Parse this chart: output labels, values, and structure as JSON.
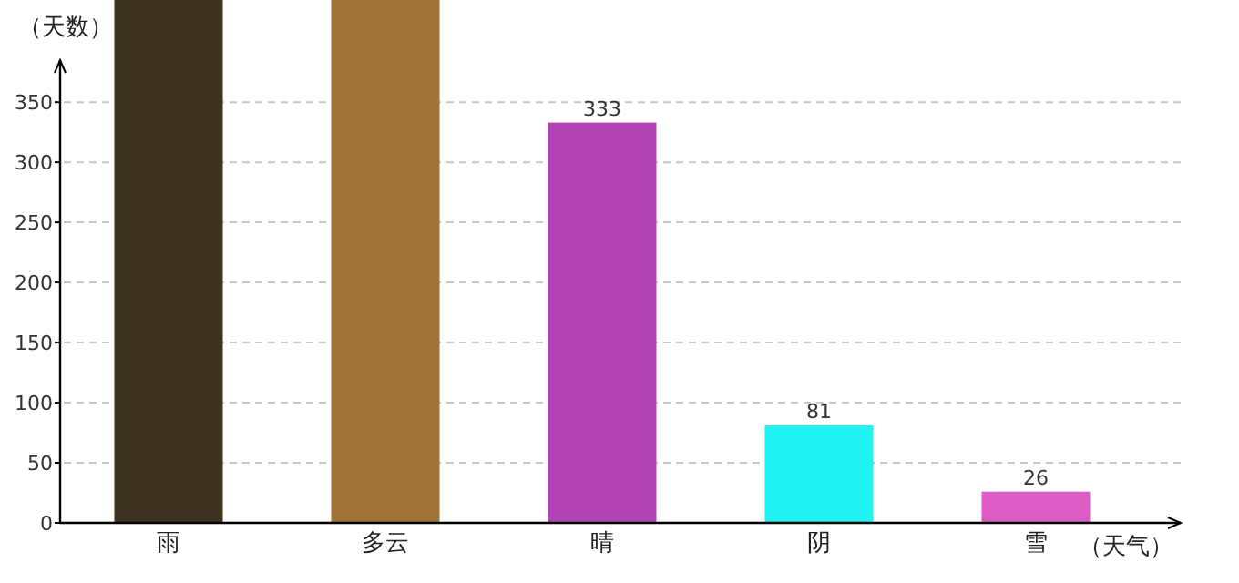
{
  "chart_data": {
    "type": "bar",
    "xlabel": "（天气）",
    "ylabel": "（天数）",
    "categories": [
      "雨",
      "多云",
      "晴",
      "阴",
      "雪"
    ],
    "values": [
      435,
      435,
      333,
      81,
      26
    ],
    "colors": [
      "#3d3320",
      "#9e7436",
      "#b242b6",
      "#1ef2f4",
      "#dc5bc4"
    ],
    "value_labels": [
      null,
      null,
      "333",
      "81",
      "26"
    ],
    "ylim": [
      0,
      435
    ],
    "yticks": [
      0,
      50,
      100,
      150,
      200,
      250,
      300,
      350
    ],
    "grid": "y"
  }
}
